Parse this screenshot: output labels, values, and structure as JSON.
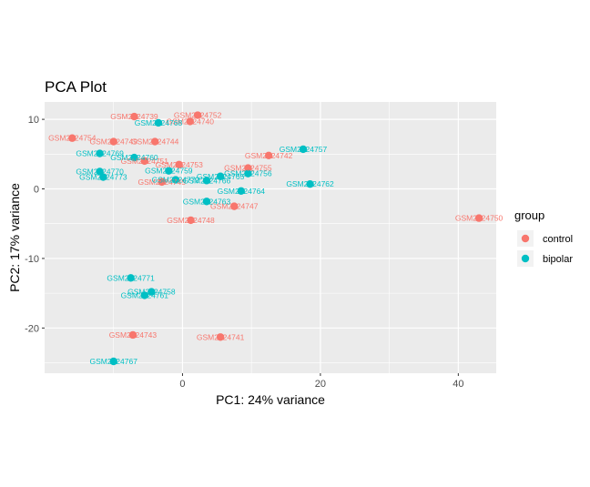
{
  "chart_data": {
    "type": "scatter",
    "title": "PCA Plot",
    "xlabel": "PC1: 24% variance",
    "ylabel": "PC2: 17% variance",
    "xlim": [
      -20,
      45.5
    ],
    "ylim": [
      -26.5,
      12.5
    ],
    "xticks": [
      0,
      20,
      40
    ],
    "yticks": [
      10,
      0,
      -10,
      -20
    ],
    "grid": true,
    "legend": {
      "title": "group",
      "position": "right",
      "entries": [
        {
          "name": "control",
          "color": "#F8766D"
        },
        {
          "name": "bipolar",
          "color": "#00BFC4"
        }
      ]
    },
    "series": [
      {
        "name": "control",
        "color": "#F8766D",
        "points": [
          {
            "label": "GSM2024739",
            "x": -7.0,
            "y": 10.4
          },
          {
            "label": "GSM2024752",
            "x": 2.2,
            "y": 10.6
          },
          {
            "label": "GSM2024740",
            "x": 1.1,
            "y": 9.7
          },
          {
            "label": "GSM2024754",
            "x": -16.0,
            "y": 7.3
          },
          {
            "label": "GSM2024749",
            "x": -10.0,
            "y": 6.8
          },
          {
            "label": "GSM2024744",
            "x": -4.0,
            "y": 6.8
          },
          {
            "label": "GSM2024742",
            "x": 12.5,
            "y": 4.8
          },
          {
            "label": "GSM2024751",
            "x": -5.5,
            "y": 4.0
          },
          {
            "label": "GSM2024753",
            "x": -0.5,
            "y": 3.5
          },
          {
            "label": "GSM2024755",
            "x": 9.5,
            "y": 3.0
          },
          {
            "label": "GSM2024745",
            "x": -3.0,
            "y": 1.0
          },
          {
            "label": "GSM2024747",
            "x": 7.5,
            "y": -2.5
          },
          {
            "label": "GSM2024748",
            "x": 1.2,
            "y": -4.5
          },
          {
            "label": "GSM2024750",
            "x": 43.0,
            "y": -4.2
          },
          {
            "label": "GSM2024743",
            "x": -7.2,
            "y": -21.0
          },
          {
            "label": "GSM2024741",
            "x": 5.5,
            "y": -21.3
          }
        ]
      },
      {
        "name": "bipolar",
        "color": "#00BFC4",
        "points": [
          {
            "label": "GSM2024768",
            "x": -3.5,
            "y": 9.5
          },
          {
            "label": "GSM2024757",
            "x": 17.5,
            "y": 5.7
          },
          {
            "label": "GSM2024769",
            "x": -12.0,
            "y": 5.1
          },
          {
            "label": "GSM2024760",
            "x": -7.0,
            "y": 4.5
          },
          {
            "label": "GSM2024770",
            "x": -12.0,
            "y": 2.5
          },
          {
            "label": "GSM2024759",
            "x": -2.0,
            "y": 2.6
          },
          {
            "label": "GSM2024756",
            "x": 9.5,
            "y": 2.2
          },
          {
            "label": "GSM2024765",
            "x": 5.5,
            "y": 1.8
          },
          {
            "label": "GSM2024773",
            "x": -11.5,
            "y": 1.7
          },
          {
            "label": "GSM2024772",
            "x": -1.0,
            "y": 1.3
          },
          {
            "label": "GSM2024766",
            "x": 3.5,
            "y": 1.2
          },
          {
            "label": "GSM2024762",
            "x": 18.5,
            "y": 0.7
          },
          {
            "label": "GSM2024764",
            "x": 8.5,
            "y": -0.3
          },
          {
            "label": "GSM2024763",
            "x": 3.5,
            "y": -1.8
          },
          {
            "label": "GSM2024771",
            "x": -7.5,
            "y": -12.8
          },
          {
            "label": "GSM2024758",
            "x": -4.5,
            "y": -14.8
          },
          {
            "label": "GSM2024761",
            "x": -5.5,
            "y": -15.3
          },
          {
            "label": "GSM2024767",
            "x": -10.0,
            "y": -24.8
          }
        ]
      }
    ]
  }
}
